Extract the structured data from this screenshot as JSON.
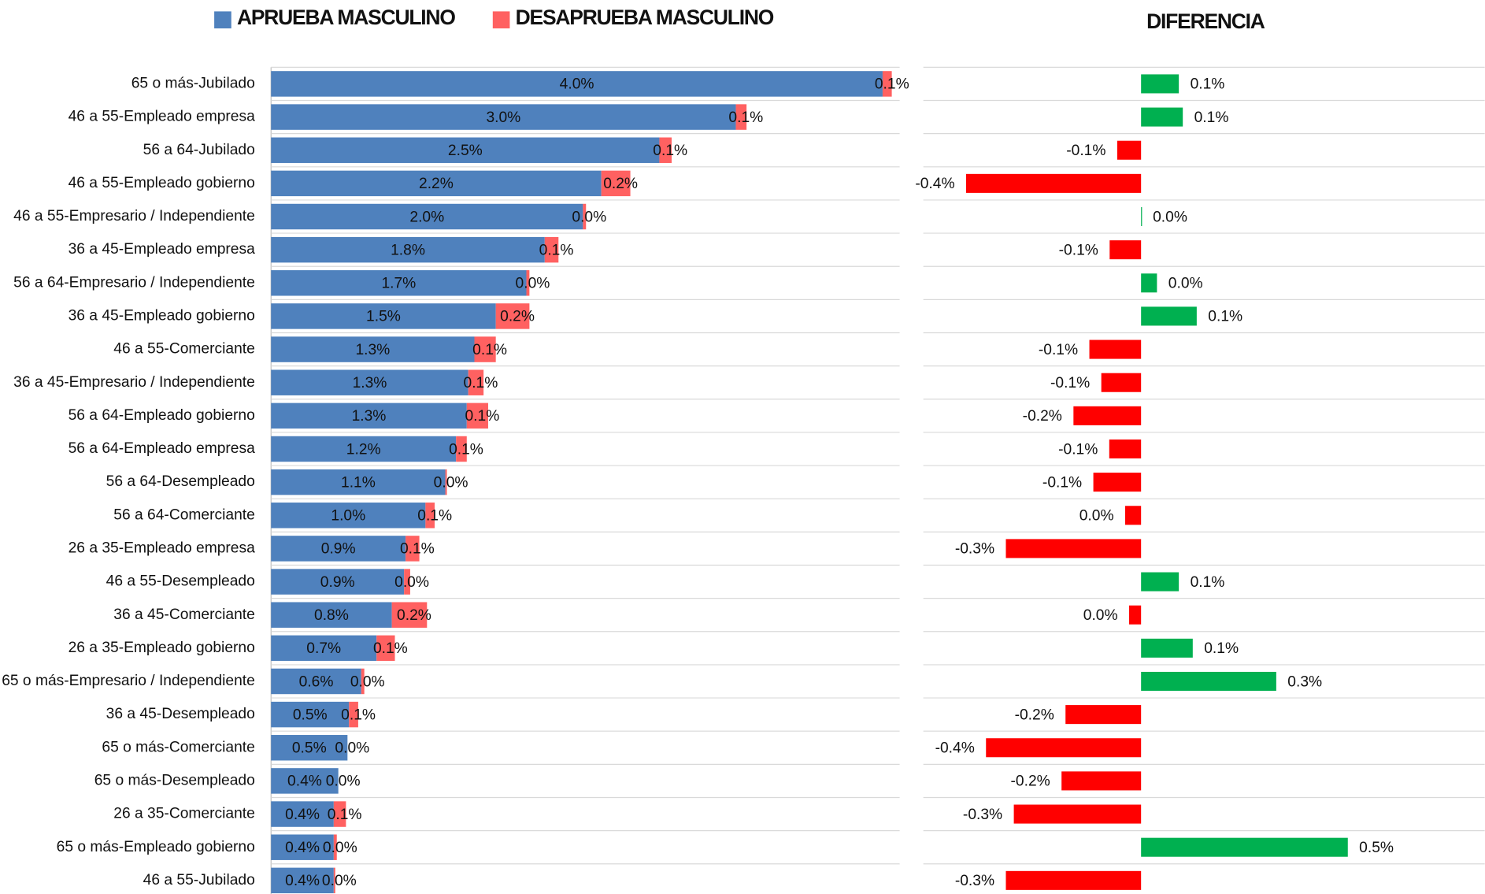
{
  "chart_data": [
    {
      "type": "stacked-hbar",
      "categories": [
        "65 o más-Jubilado",
        "46 a 55-Empleado empresa",
        "56 a 64-Jubilado",
        "46 a 55-Empleado gobierno",
        "46 a 55-Empresario / Independiente",
        "36 a 45-Empleado empresa",
        "56 a 64-Empresario / Independiente",
        "36 a 45-Empleado gobierno",
        "46 a 55-Comerciante",
        "36 a 45-Empresario / Independiente",
        "56 a 64-Empleado gobierno",
        "56 a 64-Empleado empresa",
        "56 a 64-Desempleado",
        "56 a 64-Comerciante",
        "26 a 35-Empleado empresa",
        "46 a 55-Desempleado",
        "36 a 45-Comerciante",
        "26 a 35-Empleado gobierno",
        "65 o más-Empresario / Independiente",
        "36 a 45-Desempleado",
        "65 o más-Comerciante",
        "65 o más-Desempleado",
        "26 a 35-Comerciante",
        "65 o más-Empleado gobierno",
        "46 a 55-Jubilado"
      ],
      "series": [
        {
          "name": "APRUEBA MASCULINO",
          "color": "#4f81bd",
          "values": [
            4.0,
            3.04,
            2.54,
            2.16,
            2.04,
            1.79,
            1.67,
            1.47,
            1.33,
            1.29,
            1.28,
            1.21,
            1.14,
            1.01,
            0.88,
            0.87,
            0.79,
            0.69,
            0.59,
            0.51,
            0.5,
            0.44,
            0.41,
            0.41,
            0.41
          ],
          "value_labels": [
            "4.0%",
            "3.0%",
            "2.5%",
            "2.2%",
            "2.0%",
            "1.8%",
            "1.7%",
            "1.5%",
            "1.3%",
            "1.3%",
            "1.3%",
            "1.2%",
            "1.1%",
            "1.0%",
            "0.9%",
            "0.9%",
            "0.8%",
            "0.7%",
            "0.6%",
            "0.5%",
            "0.5%",
            "0.4%",
            "0.4%",
            "0.4%",
            "0.4%"
          ]
        },
        {
          "name": "DESAPRUEBA MASCULINO",
          "color": "#ff6161",
          "values": [
            0.06,
            0.07,
            0.08,
            0.19,
            0.02,
            0.09,
            0.02,
            0.22,
            0.14,
            0.1,
            0.14,
            0.07,
            0.01,
            0.06,
            0.09,
            0.04,
            0.23,
            0.12,
            0.02,
            0.06,
            0.0,
            0.0,
            0.08,
            0.02,
            0.01
          ],
          "value_labels": [
            "0.1%",
            "0.1%",
            "0.1%",
            "0.2%",
            "0.0%",
            "0.1%",
            "0.0%",
            "0.2%",
            "0.1%",
            "0.1%",
            "0.1%",
            "0.1%",
            "0.0%",
            "0.1%",
            "0.1%",
            "0.0%",
            "0.2%",
            "0.1%",
            "0.0%",
            "0.1%",
            "0.0%",
            "0.0%",
            "0.1%",
            "0.0%",
            "0.0%"
          ]
        }
      ]
    },
    {
      "type": "diverging-hbar",
      "title": "DIFERENCIA",
      "positive_color": "#00b050",
      "negative_color": "#ff0000",
      "values": [
        0.095,
        0.105,
        -0.06,
        -0.44,
        0.001,
        -0.079,
        0.04,
        0.14,
        -0.13,
        -0.1,
        -0.17,
        -0.08,
        -0.12,
        -0.04,
        -0.34,
        0.095,
        -0.03,
        0.13,
        0.34,
        -0.19,
        -0.39,
        -0.2,
        -0.32,
        0.52,
        -0.34
      ],
      "value_labels": [
        "0.1%",
        "0.1%",
        "-0.1%",
        "-0.4%",
        "0.0%",
        "-0.1%",
        "0.0%",
        "0.1%",
        "-0.1%",
        "-0.1%",
        "-0.2%",
        "-0.1%",
        "-0.1%",
        "0.0%",
        "-0.3%",
        "0.1%",
        "0.0%",
        "0.1%",
        "0.3%",
        "-0.2%",
        "-0.4%",
        "-0.2%",
        "-0.3%",
        "0.5%",
        "-0.3%"
      ]
    }
  ]
}
